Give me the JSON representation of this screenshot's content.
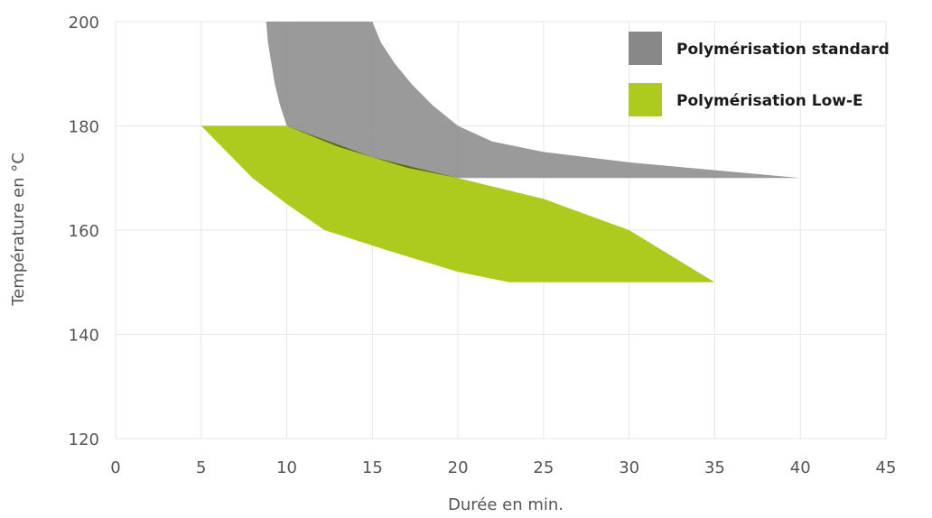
{
  "chart_data": {
    "type": "area",
    "xlabel": "Durée en min.",
    "ylabel": "Température en °C",
    "xlim": [
      0,
      45
    ],
    "ylim": [
      120,
      200
    ],
    "x_ticks": [
      0,
      5,
      10,
      15,
      20,
      25,
      30,
      35,
      40,
      45
    ],
    "y_ticks": [
      120,
      140,
      160,
      180,
      200
    ],
    "grid": true,
    "legend_position": "top-right",
    "series": [
      {
        "name": "Polymérisation standard",
        "color": "#888888",
        "polygon": [
          [
            8.8,
            200
          ],
          [
            8.9,
            196
          ],
          [
            9.1,
            192
          ],
          [
            9.3,
            188
          ],
          [
            9.6,
            184
          ],
          [
            10,
            180
          ],
          [
            13,
            176
          ],
          [
            17,
            172
          ],
          [
            20,
            170
          ],
          [
            40,
            170
          ],
          [
            30,
            173
          ],
          [
            25,
            175
          ],
          [
            22,
            177
          ],
          [
            20,
            180
          ],
          [
            18.5,
            184
          ],
          [
            17.3,
            188
          ],
          [
            16.3,
            192
          ],
          [
            15.5,
            196
          ],
          [
            15.0,
            200
          ]
        ]
      },
      {
        "name": "Polymérisation Low-E",
        "color": "#adca1e",
        "polygon": [
          [
            5,
            180
          ],
          [
            10,
            180
          ],
          [
            15,
            174
          ],
          [
            20,
            170
          ],
          [
            25,
            166
          ],
          [
            30,
            160
          ],
          [
            35,
            150
          ],
          [
            23,
            150
          ],
          [
            20,
            152
          ],
          [
            16,
            156
          ],
          [
            12.2,
            160
          ],
          [
            10,
            165
          ],
          [
            8,
            170
          ]
        ]
      }
    ]
  }
}
